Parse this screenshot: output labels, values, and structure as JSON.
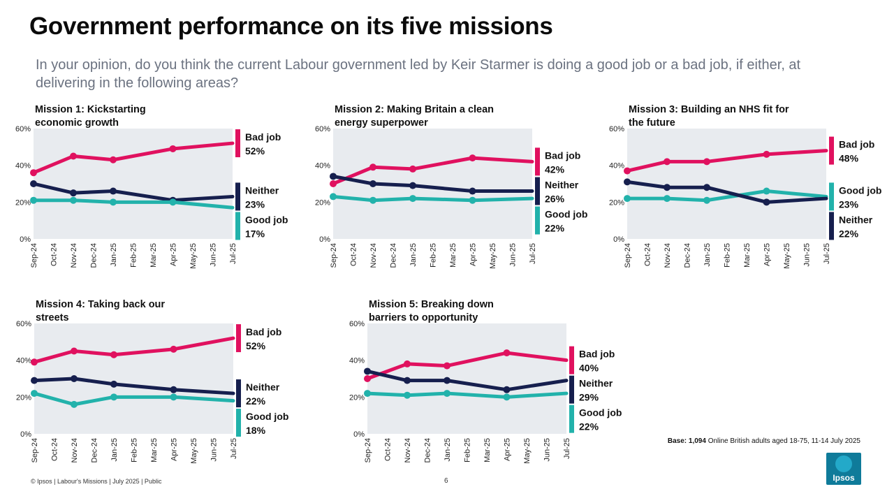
{
  "title": "Government performance on its five missions",
  "subtitle": "In your opinion, do you think the current Labour government led by Keir Starmer is doing a good job or a bad job, if either, at delivering in the following areas?",
  "base": {
    "label": "Base: 1,094",
    "text": " Online British adults aged 18-75, 11-14 July 2025"
  },
  "footer": "© Ipsos | Labour's Missions | July 2025 | Public",
  "page_number": "6",
  "logo_text": "Ipsos",
  "colors": {
    "bad": "#e0115f",
    "neither": "#161f4e",
    "good": "#22b2ab",
    "plot_bg": "#e8ebef"
  },
  "chart_data": [
    {
      "type": "line",
      "title": "Mission 1: Kickstarting economic growth",
      "x": [
        "Sep-24",
        "Oct-24",
        "Nov-24",
        "Dec-24",
        "Jan-25",
        "Feb-25",
        "Mar-25",
        "Apr-25",
        "May-25",
        "Jun-25",
        "Jul-25"
      ],
      "ylim": [
        0,
        60
      ],
      "yticks": [
        "0%",
        "20%",
        "40%",
        "60%"
      ],
      "series": [
        {
          "name": "Bad job",
          "key": "bad",
          "values": [
            36,
            null,
            45,
            null,
            43,
            null,
            null,
            49,
            null,
            null,
            52
          ],
          "label": "52%"
        },
        {
          "name": "Neither",
          "key": "neither",
          "values": [
            30,
            null,
            25,
            null,
            26,
            null,
            null,
            21,
            null,
            null,
            23
          ],
          "label": "23%"
        },
        {
          "name": "Good job",
          "key": "good",
          "values": [
            21,
            null,
            21,
            null,
            20,
            null,
            null,
            20,
            null,
            null,
            17
          ],
          "label": "17%"
        }
      ]
    },
    {
      "type": "line",
      "title": "Mission 2: Making Britain a clean energy superpower",
      "x": [
        "Sep-24",
        "Oct-24",
        "Nov-24",
        "Dec-24",
        "Jan-25",
        "Feb-25",
        "Mar-25",
        "Apr-25",
        "May-25",
        "Jun-25",
        "Jul-25"
      ],
      "ylim": [
        0,
        60
      ],
      "yticks": [
        "0%",
        "20%",
        "40%",
        "60%"
      ],
      "series": [
        {
          "name": "Bad job",
          "key": "bad",
          "values": [
            30,
            null,
            39,
            null,
            38,
            null,
            null,
            44,
            null,
            null,
            42
          ],
          "label": "42%"
        },
        {
          "name": "Neither",
          "key": "neither",
          "values": [
            34,
            null,
            30,
            null,
            29,
            null,
            null,
            26,
            null,
            null,
            26
          ],
          "label": "26%"
        },
        {
          "name": "Good job",
          "key": "good",
          "values": [
            23,
            null,
            21,
            null,
            22,
            null,
            null,
            21,
            null,
            null,
            22
          ],
          "label": "22%"
        }
      ]
    },
    {
      "type": "line",
      "title": "Mission 3: Building an NHS fit for the future",
      "x": [
        "Sep-24",
        "Oct-24",
        "Nov-24",
        "Dec-24",
        "Jan-25",
        "Feb-25",
        "Mar-25",
        "Apr-25",
        "May-25",
        "Jun-25",
        "Jul-25"
      ],
      "ylim": [
        0,
        60
      ],
      "yticks": [
        "0%",
        "20%",
        "40%",
        "60%"
      ],
      "series": [
        {
          "name": "Bad job",
          "key": "bad",
          "values": [
            37,
            null,
            42,
            null,
            42,
            null,
            null,
            46,
            null,
            null,
            48
          ],
          "label": "48%"
        },
        {
          "name": "Good job",
          "key": "good",
          "values": [
            22,
            null,
            22,
            null,
            21,
            null,
            null,
            26,
            null,
            null,
            23
          ],
          "label": "23%"
        },
        {
          "name": "Neither",
          "key": "neither",
          "values": [
            31,
            null,
            28,
            null,
            28,
            null,
            null,
            20,
            null,
            null,
            22
          ],
          "label": "22%"
        }
      ]
    },
    {
      "type": "line",
      "title": "Mission 4: Taking back our streets",
      "x": [
        "Sep-24",
        "Oct-24",
        "Nov-24",
        "Dec-24",
        "Jan-25",
        "Feb-25",
        "Mar-25",
        "Apr-25",
        "May-25",
        "Jun-25",
        "Jul-25"
      ],
      "ylim": [
        0,
        60
      ],
      "yticks": [
        "0%",
        "20%",
        "40%",
        "60%"
      ],
      "series": [
        {
          "name": "Bad job",
          "key": "bad",
          "values": [
            39,
            null,
            45,
            null,
            43,
            null,
            null,
            46,
            null,
            null,
            52
          ],
          "label": "52%"
        },
        {
          "name": "Neither",
          "key": "neither",
          "values": [
            29,
            null,
            30,
            null,
            27,
            null,
            null,
            24,
            null,
            null,
            22
          ],
          "label": "22%"
        },
        {
          "name": "Good job",
          "key": "good",
          "values": [
            22,
            null,
            16,
            null,
            20,
            null,
            null,
            20,
            null,
            null,
            18
          ],
          "label": "18%"
        }
      ]
    },
    {
      "type": "line",
      "title": "Mission 5: Breaking down barriers to opportunity",
      "x": [
        "Sep-24",
        "Oct-24",
        "Nov-24",
        "Dec-24",
        "Jan-25",
        "Feb-25",
        "Mar-25",
        "Apr-25",
        "May-25",
        "Jun-25",
        "Jul-25"
      ],
      "ylim": [
        0,
        60
      ],
      "yticks": [
        "0%",
        "20%",
        "40%",
        "60%"
      ],
      "series": [
        {
          "name": "Bad job",
          "key": "bad",
          "values": [
            30,
            null,
            38,
            null,
            37,
            null,
            null,
            44,
            null,
            null,
            40
          ],
          "label": "40%"
        },
        {
          "name": "Neither",
          "key": "neither",
          "values": [
            34,
            null,
            29,
            null,
            29,
            null,
            null,
            24,
            null,
            null,
            29
          ],
          "label": "29%"
        },
        {
          "name": "Good job",
          "key": "good",
          "values": [
            22,
            null,
            21,
            null,
            22,
            null,
            null,
            20,
            null,
            null,
            22
          ],
          "label": "22%"
        }
      ]
    }
  ]
}
